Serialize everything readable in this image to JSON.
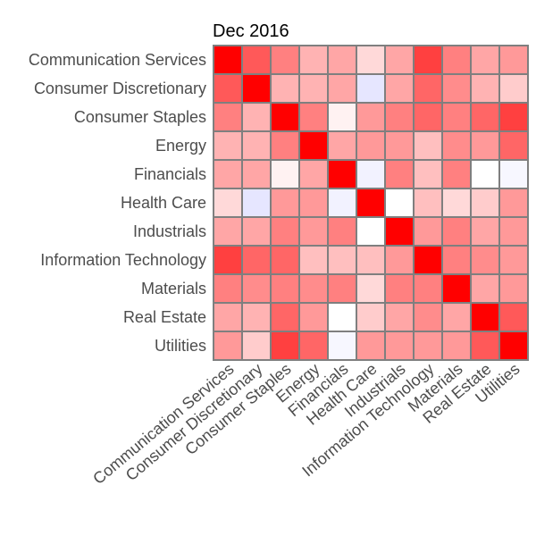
{
  "chart_data": {
    "type": "heatmap",
    "title": "Dec 2016",
    "categories": [
      "Communication Services",
      "Consumer Discretionary",
      "Consumer Staples",
      "Energy",
      "Financials",
      "Health Care",
      "Industrials",
      "Information Technology",
      "Materials",
      "Real Estate",
      "Utilities"
    ],
    "values": [
      [
        1.0,
        0.65,
        0.5,
        0.3,
        0.35,
        0.15,
        0.35,
        0.75,
        0.5,
        0.35,
        0.4
      ],
      [
        0.65,
        1.0,
        0.3,
        0.3,
        0.35,
        -0.1,
        0.35,
        0.6,
        0.45,
        0.3,
        0.2
      ],
      [
        0.5,
        0.3,
        1.0,
        0.5,
        0.05,
        0.4,
        0.5,
        0.6,
        0.5,
        0.6,
        0.75
      ],
      [
        0.3,
        0.3,
        0.5,
        1.0,
        0.35,
        0.4,
        0.4,
        0.25,
        0.45,
        0.4,
        0.6
      ],
      [
        0.35,
        0.35,
        0.05,
        0.35,
        1.0,
        -0.05,
        0.5,
        0.25,
        0.5,
        0.0,
        -0.03
      ],
      [
        0.15,
        -0.1,
        0.4,
        0.4,
        -0.05,
        1.0,
        0.0,
        0.25,
        0.15,
        0.2,
        0.4
      ],
      [
        0.35,
        0.35,
        0.5,
        0.4,
        0.5,
        0.0,
        1.0,
        0.4,
        0.5,
        0.35,
        0.4
      ],
      [
        0.75,
        0.6,
        0.6,
        0.25,
        0.25,
        0.25,
        0.4,
        1.0,
        0.5,
        0.45,
        0.4
      ],
      [
        0.5,
        0.45,
        0.5,
        0.45,
        0.5,
        0.15,
        0.5,
        0.5,
        1.0,
        0.35,
        0.4
      ],
      [
        0.35,
        0.3,
        0.6,
        0.4,
        0.0,
        0.2,
        0.35,
        0.45,
        0.35,
        1.0,
        0.65
      ],
      [
        0.4,
        0.2,
        0.75,
        0.6,
        -0.03,
        0.4,
        0.4,
        0.4,
        0.4,
        0.65,
        1.0
      ]
    ],
    "color_scale": {
      "low": "#0000ff",
      "mid": "#ffffff",
      "high": "#ff0000",
      "range": [
        -1,
        1
      ]
    },
    "grid_color": "#7f7f7f"
  }
}
